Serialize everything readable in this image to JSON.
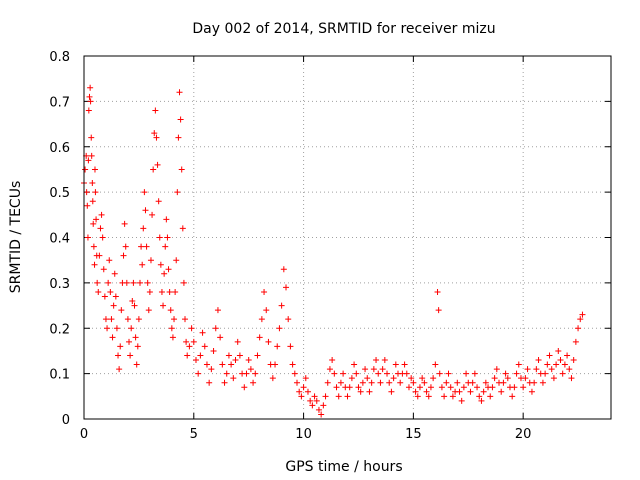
{
  "chart_data": {
    "type": "scatter",
    "title": "Day 002 of 2014, SRMTID for receiver mizu",
    "xlabel": "GPS time / hours",
    "ylabel": "SRMTID / TECUs",
    "xlim": [
      0,
      24
    ],
    "ylim": [
      0,
      0.8
    ],
    "xticks": [
      0,
      5,
      10,
      15,
      20
    ],
    "yticks": [
      0,
      0.1,
      0.2,
      0.3,
      0.4,
      0.5,
      0.6,
      0.7,
      0.8
    ],
    "grid": true,
    "marker": "+",
    "color": "#ff0000",
    "series": [
      {
        "name": "SRMTID",
        "points": [
          [
            0.0,
            0.52
          ],
          [
            0.05,
            0.55
          ],
          [
            0.1,
            0.58
          ],
          [
            0.12,
            0.5
          ],
          [
            0.15,
            0.47
          ],
          [
            0.18,
            0.4
          ],
          [
            0.2,
            0.57
          ],
          [
            0.22,
            0.68
          ],
          [
            0.25,
            0.71
          ],
          [
            0.28,
            0.73
          ],
          [
            0.3,
            0.7
          ],
          [
            0.33,
            0.62
          ],
          [
            0.35,
            0.58
          ],
          [
            0.38,
            0.52
          ],
          [
            0.4,
            0.48
          ],
          [
            0.42,
            0.43
          ],
          [
            0.45,
            0.38
          ],
          [
            0.48,
            0.34
          ],
          [
            0.5,
            0.55
          ],
          [
            0.52,
            0.5
          ],
          [
            0.55,
            0.44
          ],
          [
            0.58,
            0.36
          ],
          [
            0.6,
            0.3
          ],
          [
            0.65,
            0.28
          ],
          [
            0.7,
            0.36
          ],
          [
            0.75,
            0.42
          ],
          [
            0.8,
            0.45
          ],
          [
            0.85,
            0.4
          ],
          [
            0.9,
            0.33
          ],
          [
            0.95,
            0.27
          ],
          [
            1.0,
            0.22
          ],
          [
            1.05,
            0.2
          ],
          [
            1.1,
            0.3
          ],
          [
            1.15,
            0.35
          ],
          [
            1.2,
            0.28
          ],
          [
            1.25,
            0.22
          ],
          [
            1.3,
            0.18
          ],
          [
            1.35,
            0.25
          ],
          [
            1.4,
            0.32
          ],
          [
            1.45,
            0.27
          ],
          [
            1.5,
            0.2
          ],
          [
            1.55,
            0.14
          ],
          [
            1.6,
            0.11
          ],
          [
            1.65,
            0.16
          ],
          [
            1.7,
            0.24
          ],
          [
            1.75,
            0.3
          ],
          [
            1.8,
            0.36
          ],
          [
            1.85,
            0.43
          ],
          [
            1.9,
            0.38
          ],
          [
            1.95,
            0.3
          ],
          [
            2.0,
            0.22
          ],
          [
            2.05,
            0.17
          ],
          [
            2.1,
            0.14
          ],
          [
            2.15,
            0.2
          ],
          [
            2.2,
            0.26
          ],
          [
            2.25,
            0.3
          ],
          [
            2.3,
            0.25
          ],
          [
            2.35,
            0.18
          ],
          [
            2.4,
            0.12
          ],
          [
            2.45,
            0.16
          ],
          [
            2.5,
            0.22
          ],
          [
            2.55,
            0.3
          ],
          [
            2.6,
            0.38
          ],
          [
            2.65,
            0.34
          ],
          [
            2.7,
            0.42
          ],
          [
            2.75,
            0.5
          ],
          [
            2.8,
            0.46
          ],
          [
            2.85,
            0.38
          ],
          [
            2.9,
            0.3
          ],
          [
            2.95,
            0.24
          ],
          [
            3.0,
            0.28
          ],
          [
            3.05,
            0.35
          ],
          [
            3.1,
            0.45
          ],
          [
            3.15,
            0.55
          ],
          [
            3.2,
            0.63
          ],
          [
            3.25,
            0.68
          ],
          [
            3.3,
            0.62
          ],
          [
            3.35,
            0.56
          ],
          [
            3.4,
            0.48
          ],
          [
            3.45,
            0.4
          ],
          [
            3.5,
            0.34
          ],
          [
            3.55,
            0.28
          ],
          [
            3.6,
            0.25
          ],
          [
            3.65,
            0.32
          ],
          [
            3.7,
            0.38
          ],
          [
            3.75,
            0.44
          ],
          [
            3.8,
            0.4
          ],
          [
            3.85,
            0.33
          ],
          [
            3.9,
            0.28
          ],
          [
            3.95,
            0.24
          ],
          [
            4.0,
            0.2
          ],
          [
            4.05,
            0.18
          ],
          [
            4.1,
            0.22
          ],
          [
            4.15,
            0.28
          ],
          [
            4.2,
            0.35
          ],
          [
            4.25,
            0.5
          ],
          [
            4.3,
            0.62
          ],
          [
            4.35,
            0.72
          ],
          [
            4.4,
            0.66
          ],
          [
            4.45,
            0.55
          ],
          [
            4.5,
            0.42
          ],
          [
            4.55,
            0.3
          ],
          [
            4.6,
            0.22
          ],
          [
            4.65,
            0.17
          ],
          [
            4.7,
            0.14
          ],
          [
            4.8,
            0.16
          ],
          [
            4.9,
            0.2
          ],
          [
            5.0,
            0.17
          ],
          [
            5.1,
            0.13
          ],
          [
            5.2,
            0.1
          ],
          [
            5.3,
            0.14
          ],
          [
            5.4,
            0.19
          ],
          [
            5.5,
            0.16
          ],
          [
            5.6,
            0.12
          ],
          [
            5.7,
            0.08
          ],
          [
            5.8,
            0.11
          ],
          [
            5.9,
            0.15
          ],
          [
            6.0,
            0.2
          ],
          [
            6.1,
            0.24
          ],
          [
            6.2,
            0.18
          ],
          [
            6.3,
            0.12
          ],
          [
            6.4,
            0.08
          ],
          [
            6.5,
            0.1
          ],
          [
            6.6,
            0.14
          ],
          [
            6.7,
            0.12
          ],
          [
            6.8,
            0.09
          ],
          [
            6.9,
            0.13
          ],
          [
            7.0,
            0.17
          ],
          [
            7.1,
            0.14
          ],
          [
            7.2,
            0.1
          ],
          [
            7.3,
            0.07
          ],
          [
            7.4,
            0.1
          ],
          [
            7.5,
            0.13
          ],
          [
            7.6,
            0.11
          ],
          [
            7.7,
            0.08
          ],
          [
            7.8,
            0.1
          ],
          [
            7.9,
            0.14
          ],
          [
            8.0,
            0.18
          ],
          [
            8.1,
            0.22
          ],
          [
            8.2,
            0.28
          ],
          [
            8.3,
            0.24
          ],
          [
            8.4,
            0.17
          ],
          [
            8.5,
            0.12
          ],
          [
            8.6,
            0.09
          ],
          [
            8.7,
            0.12
          ],
          [
            8.8,
            0.16
          ],
          [
            8.9,
            0.2
          ],
          [
            9.0,
            0.25
          ],
          [
            9.1,
            0.33
          ],
          [
            9.2,
            0.29
          ],
          [
            9.3,
            0.22
          ],
          [
            9.4,
            0.16
          ],
          [
            9.5,
            0.12
          ],
          [
            9.6,
            0.1
          ],
          [
            9.7,
            0.08
          ],
          [
            9.8,
            0.06
          ],
          [
            9.9,
            0.05
          ],
          [
            10.0,
            0.07
          ],
          [
            10.1,
            0.09
          ],
          [
            10.2,
            0.06
          ],
          [
            10.3,
            0.04
          ],
          [
            10.4,
            0.03
          ],
          [
            10.5,
            0.05
          ],
          [
            10.6,
            0.04
          ],
          [
            10.7,
            0.02
          ],
          [
            10.8,
            0.01
          ],
          [
            10.9,
            0.03
          ],
          [
            11.0,
            0.05
          ],
          [
            11.1,
            0.08
          ],
          [
            11.2,
            0.11
          ],
          [
            11.3,
            0.13
          ],
          [
            11.4,
            0.1
          ],
          [
            11.5,
            0.07
          ],
          [
            11.6,
            0.05
          ],
          [
            11.7,
            0.08
          ],
          [
            11.8,
            0.1
          ],
          [
            11.9,
            0.07
          ],
          [
            12.0,
            0.05
          ],
          [
            12.1,
            0.07
          ],
          [
            12.2,
            0.09
          ],
          [
            12.3,
            0.12
          ],
          [
            12.4,
            0.1
          ],
          [
            12.5,
            0.07
          ],
          [
            12.6,
            0.06
          ],
          [
            12.7,
            0.08
          ],
          [
            12.8,
            0.11
          ],
          [
            12.9,
            0.09
          ],
          [
            13.0,
            0.06
          ],
          [
            13.1,
            0.08
          ],
          [
            13.2,
            0.11
          ],
          [
            13.3,
            0.13
          ],
          [
            13.4,
            0.1
          ],
          [
            13.5,
            0.08
          ],
          [
            13.6,
            0.11
          ],
          [
            13.7,
            0.13
          ],
          [
            13.8,
            0.1
          ],
          [
            13.9,
            0.08
          ],
          [
            14.0,
            0.06
          ],
          [
            14.1,
            0.09
          ],
          [
            14.2,
            0.12
          ],
          [
            14.3,
            0.1
          ],
          [
            14.4,
            0.08
          ],
          [
            14.5,
            0.1
          ],
          [
            14.6,
            0.12
          ],
          [
            14.7,
            0.1
          ],
          [
            14.8,
            0.07
          ],
          [
            14.9,
            0.09
          ],
          [
            15.0,
            0.08
          ],
          [
            15.1,
            0.06
          ],
          [
            15.2,
            0.05
          ],
          [
            15.3,
            0.07
          ],
          [
            15.4,
            0.09
          ],
          [
            15.5,
            0.08
          ],
          [
            15.6,
            0.06
          ],
          [
            15.7,
            0.05
          ],
          [
            15.8,
            0.07
          ],
          [
            15.9,
            0.09
          ],
          [
            16.0,
            0.12
          ],
          [
            16.1,
            0.28
          ],
          [
            16.15,
            0.24
          ],
          [
            16.2,
            0.1
          ],
          [
            16.3,
            0.07
          ],
          [
            16.4,
            0.05
          ],
          [
            16.5,
            0.08
          ],
          [
            16.6,
            0.1
          ],
          [
            16.7,
            0.07
          ],
          [
            16.8,
            0.05
          ],
          [
            16.9,
            0.06
          ],
          [
            17.0,
            0.08
          ],
          [
            17.1,
            0.06
          ],
          [
            17.2,
            0.04
          ],
          [
            17.3,
            0.07
          ],
          [
            17.4,
            0.1
          ],
          [
            17.5,
            0.08
          ],
          [
            17.6,
            0.06
          ],
          [
            17.7,
            0.08
          ],
          [
            17.8,
            0.1
          ],
          [
            17.9,
            0.07
          ],
          [
            18.0,
            0.05
          ],
          [
            18.1,
            0.04
          ],
          [
            18.2,
            0.06
          ],
          [
            18.3,
            0.08
          ],
          [
            18.4,
            0.07
          ],
          [
            18.5,
            0.05
          ],
          [
            18.6,
            0.07
          ],
          [
            18.7,
            0.09
          ],
          [
            18.8,
            0.11
          ],
          [
            18.9,
            0.08
          ],
          [
            19.0,
            0.06
          ],
          [
            19.1,
            0.08
          ],
          [
            19.2,
            0.1
          ],
          [
            19.3,
            0.09
          ],
          [
            19.4,
            0.07
          ],
          [
            19.5,
            0.05
          ],
          [
            19.6,
            0.07
          ],
          [
            19.7,
            0.1
          ],
          [
            19.8,
            0.12
          ],
          [
            19.9,
            0.09
          ],
          [
            20.0,
            0.07
          ],
          [
            20.1,
            0.09
          ],
          [
            20.2,
            0.11
          ],
          [
            20.3,
            0.08
          ],
          [
            20.4,
            0.06
          ],
          [
            20.5,
            0.08
          ],
          [
            20.6,
            0.11
          ],
          [
            20.7,
            0.13
          ],
          [
            20.8,
            0.1
          ],
          [
            20.9,
            0.08
          ],
          [
            21.0,
            0.1
          ],
          [
            21.1,
            0.12
          ],
          [
            21.2,
            0.14
          ],
          [
            21.3,
            0.11
          ],
          [
            21.4,
            0.09
          ],
          [
            21.5,
            0.12
          ],
          [
            21.6,
            0.15
          ],
          [
            21.7,
            0.13
          ],
          [
            21.8,
            0.1
          ],
          [
            21.9,
            0.12
          ],
          [
            22.0,
            0.14
          ],
          [
            22.1,
            0.11
          ],
          [
            22.2,
            0.09
          ],
          [
            22.3,
            0.13
          ],
          [
            22.4,
            0.17
          ],
          [
            22.5,
            0.2
          ],
          [
            22.6,
            0.22
          ],
          [
            22.7,
            0.23
          ]
        ]
      }
    ]
  }
}
